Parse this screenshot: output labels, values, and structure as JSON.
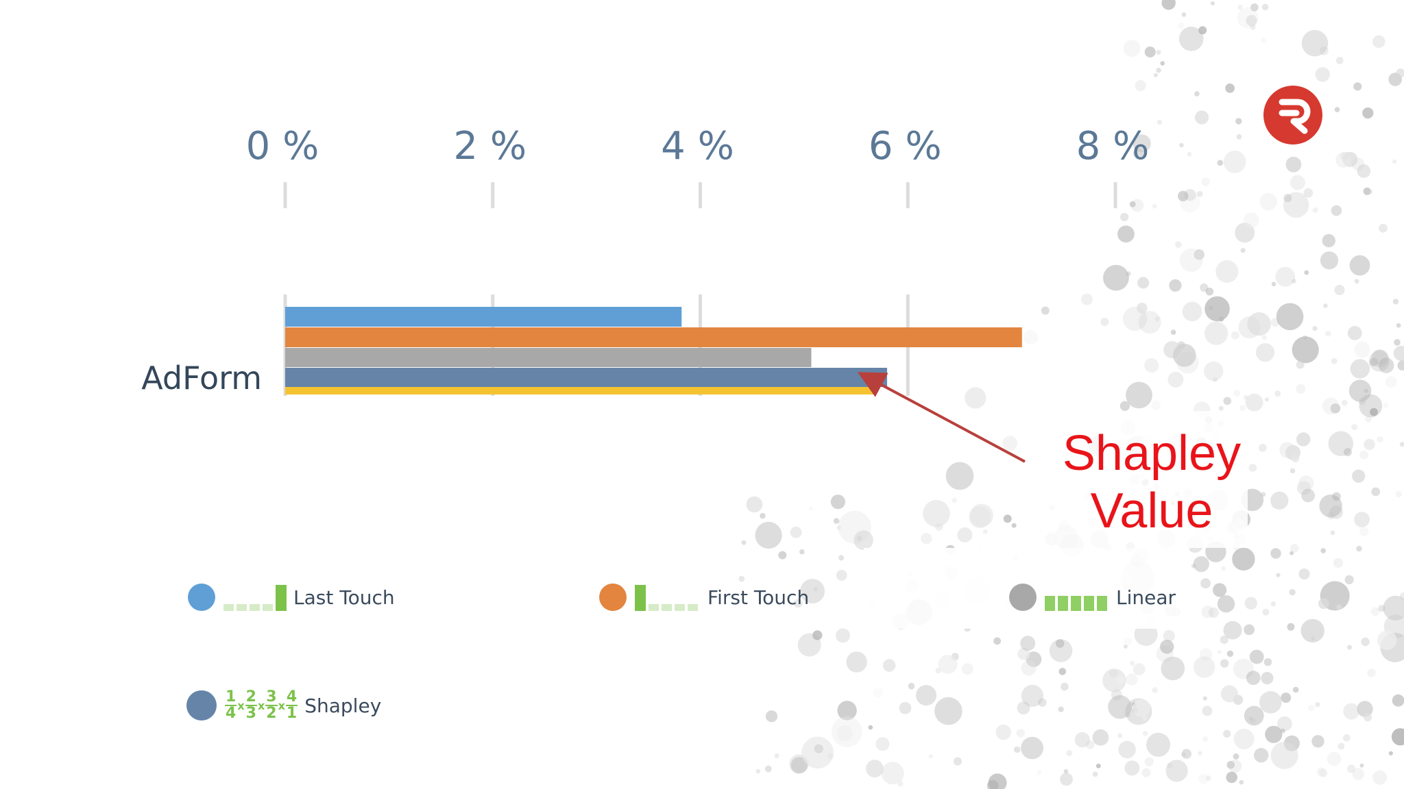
{
  "chart_data": {
    "type": "bar",
    "orientation": "horizontal",
    "categories": [
      "AdForm"
    ],
    "xlim": [
      0,
      8
    ],
    "x_ticks": [
      "0 %",
      "2 %",
      "4 %",
      "6 %",
      "8 %"
    ],
    "x_tick_values": [
      0,
      2,
      4,
      6,
      8
    ],
    "grid": true,
    "series": [
      {
        "name": "Last Touch",
        "values": [
          3.82
        ],
        "color": "#5f9fd6"
      },
      {
        "name": "First Touch",
        "values": [
          7.1
        ],
        "color": "#e3853f"
      },
      {
        "name": "Linear",
        "values": [
          5.07
        ],
        "color": "#a8a8a8"
      },
      {
        "name": "Shapley",
        "values": [
          5.8
        ],
        "color": "#6584a8"
      },
      {
        "values": [
          5.69
        ],
        "color": "#f5c332"
      }
    ],
    "legend": [
      {
        "label": "Last Touch",
        "color": "#5f9fd6",
        "glyph": "last-touch-bars-icon"
      },
      {
        "label": "First Touch",
        "color": "#e3853f",
        "glyph": "first-touch-bars-icon"
      },
      {
        "label": "Linear",
        "color": "#a8a8a8",
        "glyph": "linear-bars-icon"
      },
      {
        "label": "Shapley",
        "color": "#6584a8",
        "glyph": "fraction-product-icon"
      }
    ],
    "fractions": [
      {
        "num": "1",
        "den": "4"
      },
      {
        "num": "2",
        "den": "3"
      },
      {
        "num": "3",
        "den": "2"
      },
      {
        "num": "4",
        "den": "1"
      }
    ],
    "fraction_separator": "x",
    "annotation": "Shapley Value",
    "legend_position": "bottom"
  },
  "annotation": {
    "line1": "Shapley",
    "line2": "Value",
    "color": "#e8141a"
  },
  "logo": {
    "name": "logo-r-icon",
    "color": "#d6392f"
  },
  "colors": {
    "tick_text": "#5b7896",
    "grid": "#dcdcdc",
    "glyph_green": "#7cc24a",
    "glyph_light": "#d6ebc7"
  }
}
